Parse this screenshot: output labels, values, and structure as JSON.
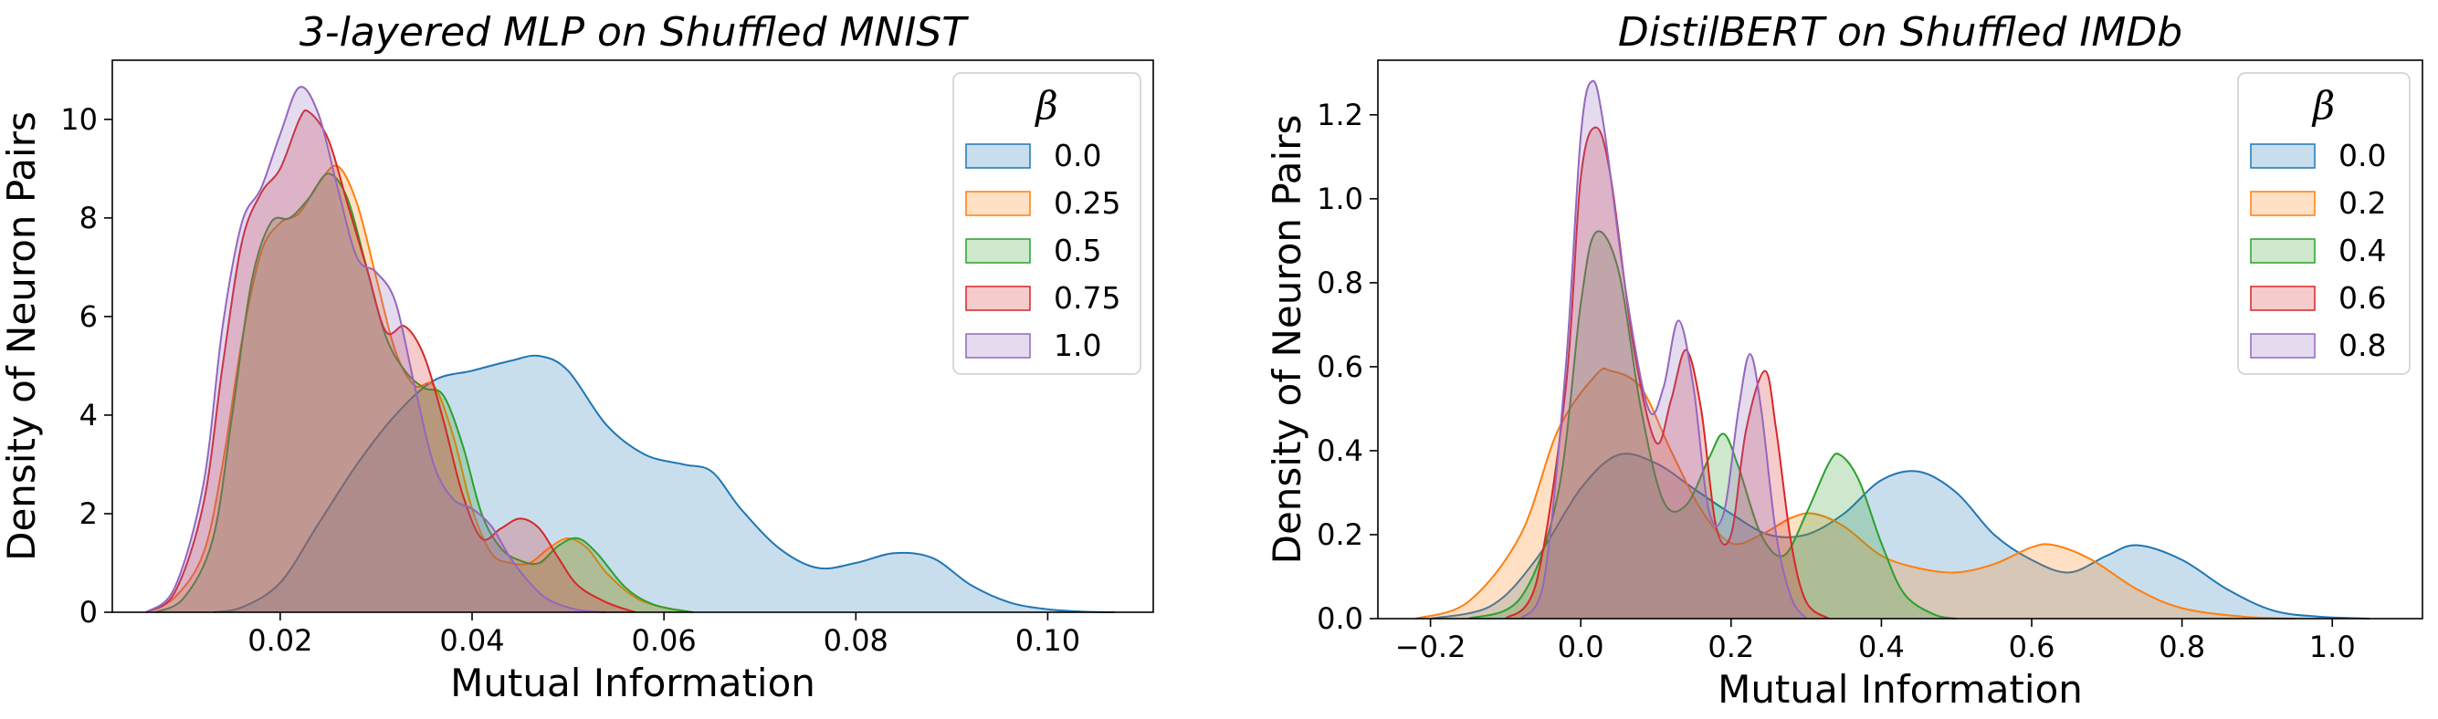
{
  "chart_data": [
    {
      "type": "area",
      "title": "3-layered MLP on Shuffled MNIST",
      "xlabel": "Mutual Information",
      "ylabel": "Density of Neuron Pairs",
      "xlim": [
        0.0025,
        0.111
      ],
      "ylim": [
        0,
        11.2
      ],
      "xticks": [
        0.02,
        0.04,
        0.06,
        0.08,
        0.1
      ],
      "xtick_labels": [
        "0.02",
        "0.04",
        "0.06",
        "0.08",
        "0.10"
      ],
      "yticks": [
        0,
        2,
        4,
        6,
        8,
        10
      ],
      "ytick_labels": [
        "0",
        "2",
        "4",
        "6",
        "8",
        "10"
      ],
      "grid": false,
      "legend": {
        "title": "β",
        "placement": "top-right"
      },
      "series": [
        {
          "name": "0.0",
          "color": "#1f77b4",
          "points": [
            [
              0.013,
              0
            ],
            [
              0.016,
              0.1
            ],
            [
              0.02,
              0.6
            ],
            [
              0.024,
              1.8
            ],
            [
              0.028,
              3.0
            ],
            [
              0.032,
              4.0
            ],
            [
              0.036,
              4.7
            ],
            [
              0.04,
              4.9
            ],
            [
              0.044,
              5.1
            ],
            [
              0.047,
              5.2
            ],
            [
              0.05,
              4.9
            ],
            [
              0.054,
              3.8
            ],
            [
              0.058,
              3.2
            ],
            [
              0.062,
              3.0
            ],
            [
              0.065,
              2.85
            ],
            [
              0.068,
              2.1
            ],
            [
              0.072,
              1.3
            ],
            [
              0.076,
              0.9
            ],
            [
              0.08,
              1.0
            ],
            [
              0.084,
              1.2
            ],
            [
              0.088,
              1.1
            ],
            [
              0.092,
              0.55
            ],
            [
              0.096,
              0.2
            ],
            [
              0.1,
              0.06
            ],
            [
              0.104,
              0.01
            ],
            [
              0.107,
              0
            ]
          ]
        },
        {
          "name": "0.25",
          "color": "#ff7f0e",
          "points": [
            [
              0.006,
              0
            ],
            [
              0.009,
              0.3
            ],
            [
              0.012,
              1.2
            ],
            [
              0.014,
              3.0
            ],
            [
              0.016,
              5.5
            ],
            [
              0.018,
              7.3
            ],
            [
              0.02,
              7.9
            ],
            [
              0.022,
              8.1
            ],
            [
              0.024,
              8.7
            ],
            [
              0.026,
              9.05
            ],
            [
              0.028,
              8.3
            ],
            [
              0.03,
              6.8
            ],
            [
              0.032,
              5.3
            ],
            [
              0.034,
              4.6
            ],
            [
              0.036,
              4.6
            ],
            [
              0.038,
              3.6
            ],
            [
              0.04,
              2.1
            ],
            [
              0.042,
              1.2
            ],
            [
              0.044,
              1.0
            ],
            [
              0.046,
              1.0
            ],
            [
              0.048,
              1.3
            ],
            [
              0.05,
              1.5
            ],
            [
              0.052,
              1.3
            ],
            [
              0.054,
              0.8
            ],
            [
              0.057,
              0.3
            ],
            [
              0.06,
              0.1
            ],
            [
              0.063,
              0
            ]
          ]
        },
        {
          "name": "0.5",
          "color": "#2ca02c",
          "points": [
            [
              0.007,
              0
            ],
            [
              0.01,
              0.3
            ],
            [
              0.013,
              1.5
            ],
            [
              0.015,
              4.0
            ],
            [
              0.017,
              6.7
            ],
            [
              0.019,
              7.9
            ],
            [
              0.021,
              8.0
            ],
            [
              0.023,
              8.4
            ],
            [
              0.025,
              8.9
            ],
            [
              0.027,
              8.4
            ],
            [
              0.029,
              7.0
            ],
            [
              0.031,
              5.6
            ],
            [
              0.033,
              4.9
            ],
            [
              0.035,
              4.55
            ],
            [
              0.037,
              4.4
            ],
            [
              0.039,
              3.4
            ],
            [
              0.041,
              2.0
            ],
            [
              0.043,
              1.3
            ],
            [
              0.045,
              1.05
            ],
            [
              0.047,
              1.0
            ],
            [
              0.049,
              1.35
            ],
            [
              0.051,
              1.5
            ],
            [
              0.053,
              1.2
            ],
            [
              0.056,
              0.5
            ],
            [
              0.059,
              0.15
            ],
            [
              0.063,
              0
            ]
          ]
        },
        {
          "name": "0.75",
          "color": "#d62728",
          "points": [
            [
              0.006,
              0
            ],
            [
              0.009,
              0.4
            ],
            [
              0.012,
              2.2
            ],
            [
              0.014,
              5.0
            ],
            [
              0.016,
              7.5
            ],
            [
              0.018,
              8.5
            ],
            [
              0.02,
              9.0
            ],
            [
              0.022,
              10.0
            ],
            [
              0.023,
              10.15
            ],
            [
              0.025,
              9.6
            ],
            [
              0.027,
              8.3
            ],
            [
              0.029,
              7.0
            ],
            [
              0.031,
              5.7
            ],
            [
              0.033,
              5.8
            ],
            [
              0.035,
              5.2
            ],
            [
              0.037,
              3.9
            ],
            [
              0.039,
              2.4
            ],
            [
              0.041,
              1.5
            ],
            [
              0.043,
              1.7
            ],
            [
              0.045,
              1.9
            ],
            [
              0.047,
              1.7
            ],
            [
              0.049,
              1.1
            ],
            [
              0.051,
              0.55
            ],
            [
              0.054,
              0.2
            ],
            [
              0.057,
              0
            ]
          ]
        },
        {
          "name": "1.0",
          "color": "#9467bd",
          "points": [
            [
              0.006,
              0
            ],
            [
              0.009,
              0.5
            ],
            [
              0.012,
              2.6
            ],
            [
              0.014,
              5.8
            ],
            [
              0.016,
              7.9
            ],
            [
              0.018,
              8.6
            ],
            [
              0.02,
              9.7
            ],
            [
              0.022,
              10.65
            ],
            [
              0.024,
              10.1
            ],
            [
              0.026,
              8.6
            ],
            [
              0.028,
              7.2
            ],
            [
              0.03,
              6.9
            ],
            [
              0.032,
              6.3
            ],
            [
              0.034,
              4.6
            ],
            [
              0.036,
              3.0
            ],
            [
              0.038,
              2.3
            ],
            [
              0.04,
              2.1
            ],
            [
              0.042,
              1.75
            ],
            [
              0.044,
              1.1
            ],
            [
              0.046,
              0.6
            ],
            [
              0.048,
              0.25
            ],
            [
              0.051,
              0.05
            ],
            [
              0.054,
              0
            ]
          ]
        }
      ]
    },
    {
      "type": "area",
      "title": "DistilBERT on Shuffled IMDb",
      "xlabel": "Mutual Information",
      "ylabel": "Density of Neuron Pairs",
      "xlim": [
        -0.27,
        1.12
      ],
      "ylim": [
        0,
        1.33
      ],
      "xticks": [
        -0.2,
        0.0,
        0.2,
        0.4,
        0.6,
        0.8,
        1.0
      ],
      "xtick_labels": [
        "−0.2",
        "0.0",
        "0.2",
        "0.4",
        "0.6",
        "0.8",
        "1.0"
      ],
      "yticks": [
        0.0,
        0.2,
        0.4,
        0.6,
        0.8,
        1.0,
        1.2
      ],
      "ytick_labels": [
        "0.0",
        "0.2",
        "0.4",
        "0.6",
        "0.8",
        "1.0",
        "1.2"
      ],
      "grid": false,
      "legend": {
        "title": "β",
        "placement": "top-right"
      },
      "series": [
        {
          "name": "0.0",
          "color": "#1f77b4",
          "points": [
            [
              -0.2,
              0
            ],
            [
              -0.12,
              0.03
            ],
            [
              -0.06,
              0.14
            ],
            [
              0.0,
              0.31
            ],
            [
              0.05,
              0.39
            ],
            [
              0.1,
              0.37
            ],
            [
              0.15,
              0.31
            ],
            [
              0.2,
              0.25
            ],
            [
              0.25,
              0.2
            ],
            [
              0.3,
              0.2
            ],
            [
              0.35,
              0.25
            ],
            [
              0.4,
              0.33
            ],
            [
              0.45,
              0.35
            ],
            [
              0.5,
              0.3
            ],
            [
              0.55,
              0.2
            ],
            [
              0.6,
              0.14
            ],
            [
              0.65,
              0.11
            ],
            [
              0.7,
              0.15
            ],
            [
              0.74,
              0.175
            ],
            [
              0.8,
              0.14
            ],
            [
              0.86,
              0.07
            ],
            [
              0.92,
              0.02
            ],
            [
              0.98,
              0.005
            ],
            [
              1.05,
              0
            ]
          ]
        },
        {
          "name": "0.2",
          "color": "#ff7f0e",
          "points": [
            [
              -0.22,
              0
            ],
            [
              -0.15,
              0.04
            ],
            [
              -0.08,
              0.2
            ],
            [
              -0.03,
              0.45
            ],
            [
              0.02,
              0.58
            ],
            [
              0.04,
              0.59
            ],
            [
              0.08,
              0.55
            ],
            [
              0.12,
              0.4
            ],
            [
              0.16,
              0.26
            ],
            [
              0.2,
              0.18
            ],
            [
              0.24,
              0.2
            ],
            [
              0.28,
              0.24
            ],
            [
              0.31,
              0.25
            ],
            [
              0.35,
              0.22
            ],
            [
              0.4,
              0.15
            ],
            [
              0.45,
              0.12
            ],
            [
              0.5,
              0.11
            ],
            [
              0.55,
              0.13
            ],
            [
              0.6,
              0.17
            ],
            [
              0.63,
              0.175
            ],
            [
              0.68,
              0.14
            ],
            [
              0.74,
              0.07
            ],
            [
              0.8,
              0.025
            ],
            [
              0.88,
              0.005
            ],
            [
              0.95,
              0
            ]
          ]
        },
        {
          "name": "0.4",
          "color": "#2ca02c",
          "points": [
            [
              -0.15,
              0
            ],
            [
              -0.08,
              0.05
            ],
            [
              -0.03,
              0.3
            ],
            [
              0.0,
              0.75
            ],
            [
              0.02,
              0.92
            ],
            [
              0.05,
              0.83
            ],
            [
              0.08,
              0.5
            ],
            [
              0.11,
              0.28
            ],
            [
              0.14,
              0.27
            ],
            [
              0.17,
              0.38
            ],
            [
              0.19,
              0.44
            ],
            [
              0.21,
              0.36
            ],
            [
              0.24,
              0.2
            ],
            [
              0.27,
              0.15
            ],
            [
              0.3,
              0.25
            ],
            [
              0.33,
              0.37
            ],
            [
              0.345,
              0.39
            ],
            [
              0.37,
              0.33
            ],
            [
              0.4,
              0.18
            ],
            [
              0.43,
              0.06
            ],
            [
              0.47,
              0.01
            ],
            [
              0.5,
              0
            ]
          ]
        },
        {
          "name": "0.6",
          "color": "#d62728",
          "points": [
            [
              -0.1,
              0
            ],
            [
              -0.06,
              0.08
            ],
            [
              -0.02,
              0.55
            ],
            [
              0.0,
              1.05
            ],
            [
              0.02,
              1.17
            ],
            [
              0.04,
              1.05
            ],
            [
              0.07,
              0.65
            ],
            [
              0.1,
              0.42
            ],
            [
              0.12,
              0.52
            ],
            [
              0.14,
              0.64
            ],
            [
              0.16,
              0.5
            ],
            [
              0.18,
              0.22
            ],
            [
              0.2,
              0.2
            ],
            [
              0.22,
              0.45
            ],
            [
              0.245,
              0.59
            ],
            [
              0.26,
              0.45
            ],
            [
              0.28,
              0.18
            ],
            [
              0.3,
              0.04
            ],
            [
              0.33,
              0
            ]
          ]
        },
        {
          "name": "0.8",
          "color": "#9467bd",
          "points": [
            [
              -0.08,
              0
            ],
            [
              -0.05,
              0.08
            ],
            [
              -0.02,
              0.6
            ],
            [
              0.0,
              1.15
            ],
            [
              0.015,
              1.28
            ],
            [
              0.03,
              1.18
            ],
            [
              0.06,
              0.78
            ],
            [
              0.09,
              0.5
            ],
            [
              0.11,
              0.55
            ],
            [
              0.13,
              0.71
            ],
            [
              0.15,
              0.55
            ],
            [
              0.17,
              0.26
            ],
            [
              0.19,
              0.25
            ],
            [
              0.21,
              0.5
            ],
            [
              0.225,
              0.63
            ],
            [
              0.24,
              0.5
            ],
            [
              0.26,
              0.2
            ],
            [
              0.28,
              0.05
            ],
            [
              0.3,
              0
            ]
          ]
        }
      ]
    }
  ]
}
